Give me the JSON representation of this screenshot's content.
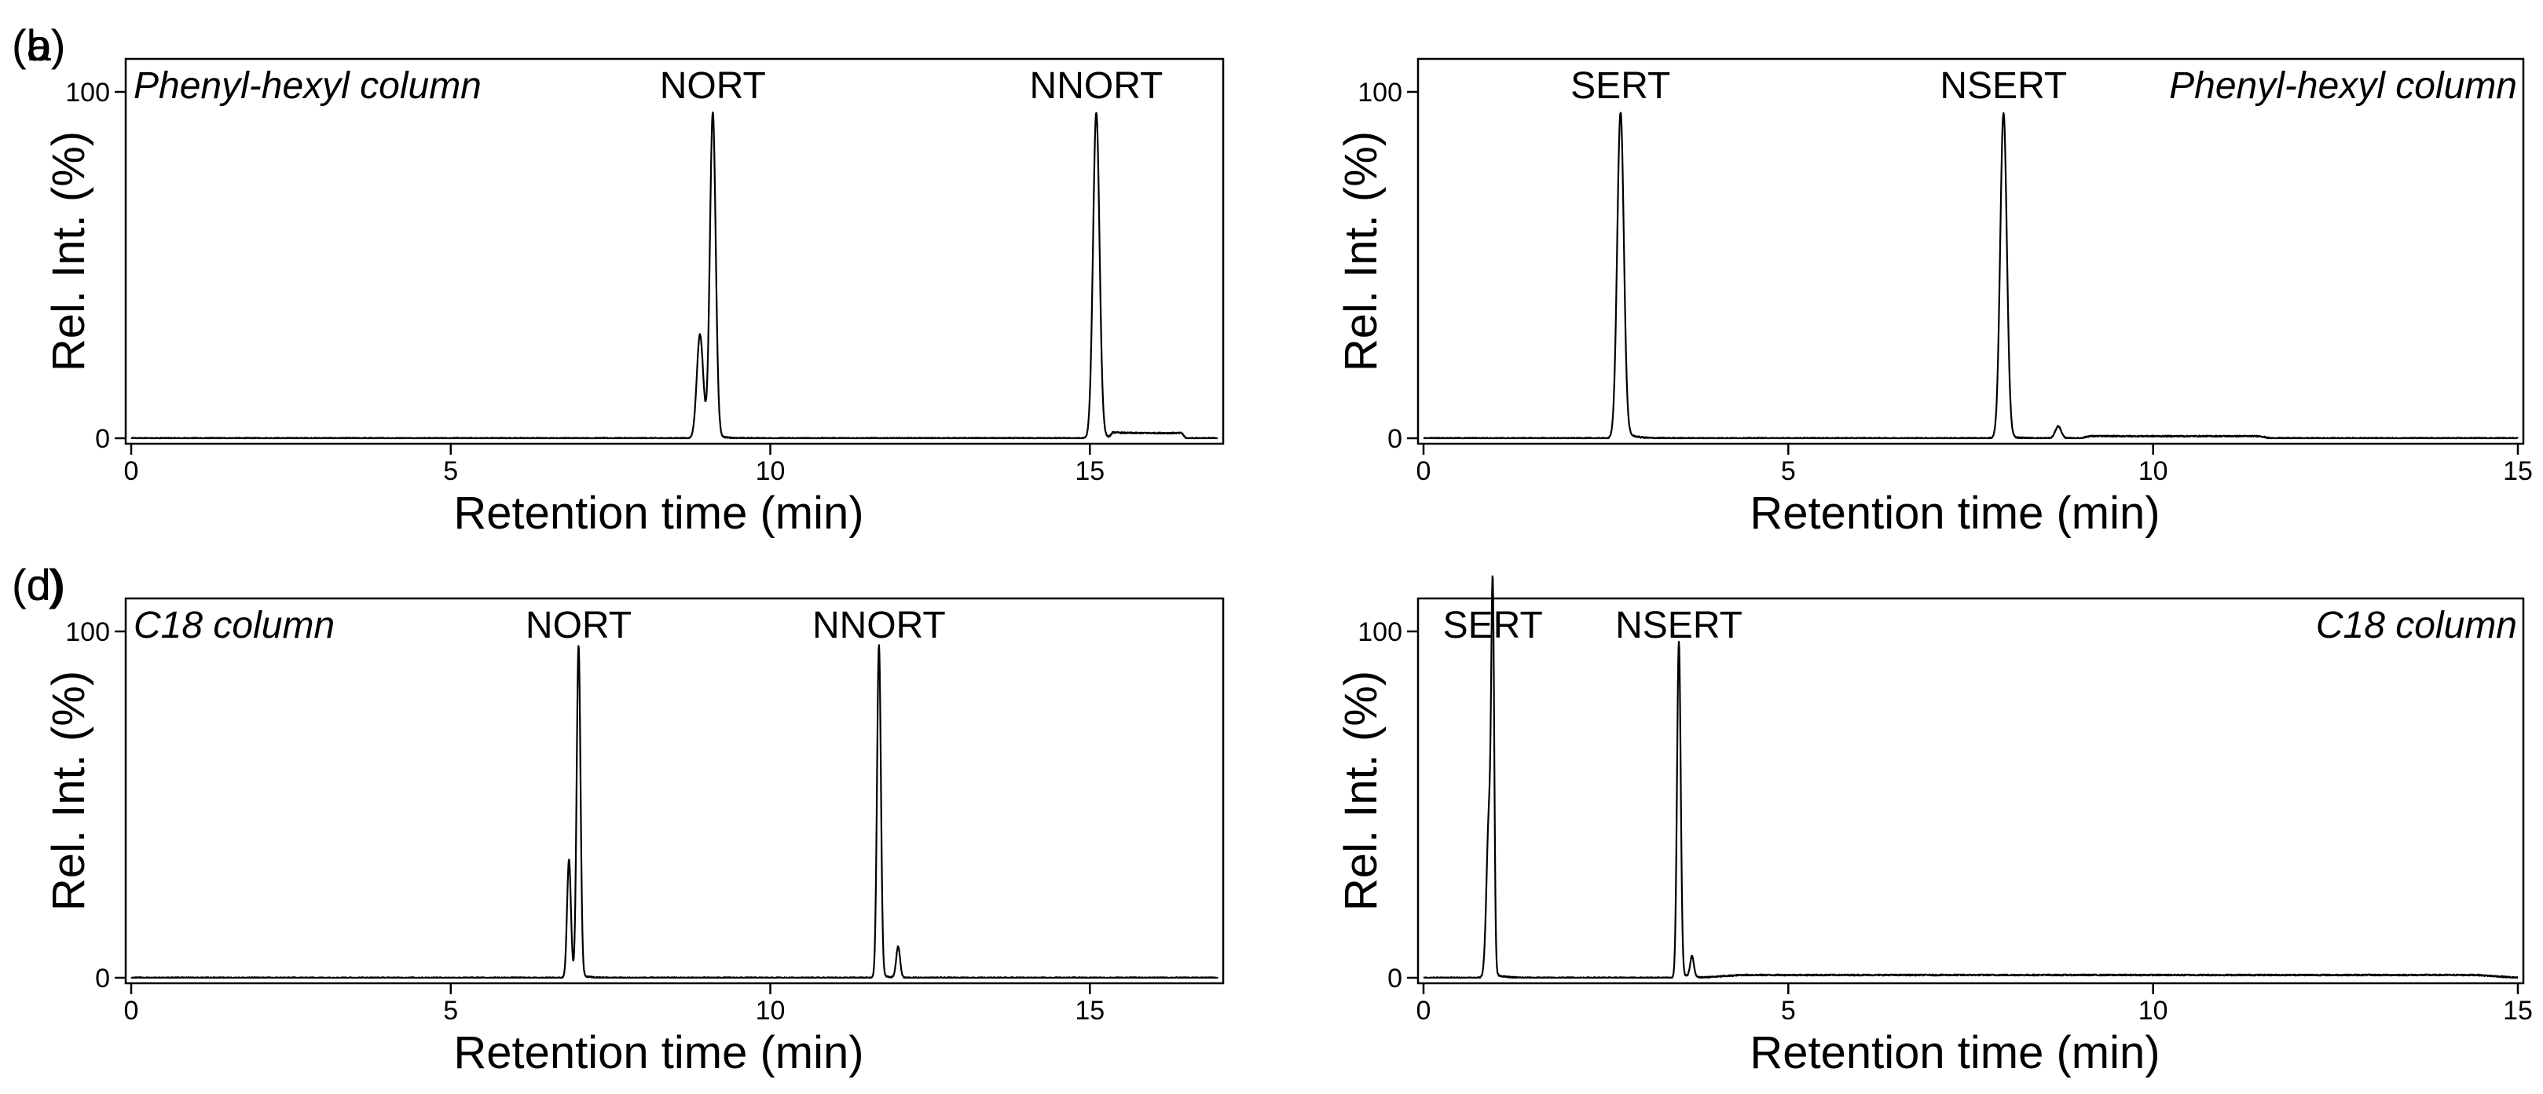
{
  "chart_data": [
    {
      "type": "line",
      "panel_label": "(a)",
      "column_label": "Phenyl-hexyl column",
      "column_label_position": "top-left",
      "xlabel": "Retention time (min)",
      "ylabel": "Rel. Int. (%)",
      "xlim": [
        0,
        17
      ],
      "ylim": [
        0,
        100
      ],
      "xticks": [
        0,
        5,
        10,
        15
      ],
      "yticks": [
        0,
        100
      ],
      "grid": false,
      "peak_labels": [
        {
          "text": "NORT",
          "x": 9.1
        },
        {
          "text": "NNORT",
          "x": 15.1
        }
      ],
      "peaks": [
        {
          "rt": 8.9,
          "height": 30,
          "width": 0.05,
          "tail": 0
        },
        {
          "rt": 9.1,
          "height": 94,
          "width": 0.045,
          "tail": 1.5
        },
        {
          "rt": 15.1,
          "height": 94,
          "width": 0.05,
          "tail": 2
        }
      ],
      "baseline_humps": [
        {
          "from": 15.3,
          "to": 16.5,
          "level": 1.5
        }
      ]
    },
    {
      "type": "line",
      "panel_label": "(b)",
      "column_label": "Phenyl-hexyl column",
      "column_label_position": "top-right",
      "xlabel": "Retention time (min)",
      "ylabel": "Rel. Int. (%)",
      "xlim": [
        0,
        15
      ],
      "ylim": [
        0,
        100
      ],
      "xticks": [
        0,
        5,
        10,
        15
      ],
      "yticks": [
        0,
        100
      ],
      "grid": false,
      "peak_labels": [
        {
          "text": "SERT",
          "x": 2.7
        },
        {
          "text": "NSERT",
          "x": 7.95
        }
      ],
      "peaks": [
        {
          "rt": 2.7,
          "height": 94,
          "width": 0.045,
          "tail": 3
        },
        {
          "rt": 7.95,
          "height": 94,
          "width": 0.045,
          "tail": 1
        },
        {
          "rt": 8.7,
          "height": 3.5,
          "width": 0.04,
          "tail": 0
        }
      ],
      "baseline_humps": [
        {
          "from": 9.0,
          "to": 11.6,
          "level": 0.6
        }
      ]
    },
    {
      "type": "line",
      "panel_label": "(c)",
      "column_label": "C18 column",
      "column_label_position": "top-left",
      "xlabel": "Retention time (min)",
      "ylabel": "Rel. Int. (%)",
      "xlim": [
        0,
        17
      ],
      "ylim": [
        0,
        100
      ],
      "xticks": [
        0,
        5,
        10,
        15
      ],
      "yticks": [
        0,
        100
      ],
      "grid": false,
      "peak_labels": [
        {
          "text": "NORT",
          "x": 7.0
        },
        {
          "text": "NNORT",
          "x": 11.7
        }
      ],
      "peaks": [
        {
          "rt": 6.85,
          "height": 34,
          "width": 0.03,
          "tail": 0
        },
        {
          "rt": 7.0,
          "height": 96,
          "width": 0.03,
          "tail": 1
        },
        {
          "rt": 11.7,
          "height": 96,
          "width": 0.03,
          "tail": 1
        },
        {
          "rt": 12.0,
          "height": 9,
          "width": 0.03,
          "tail": 0
        }
      ],
      "baseline_humps": []
    },
    {
      "type": "line",
      "panel_label": "(d)",
      "column_label": "C18 column",
      "column_label_position": "top-right",
      "xlabel": "Retention time (min)",
      "ylabel": "Rel. Int. (%)",
      "xlim": [
        0,
        15
      ],
      "ylim": [
        0,
        100
      ],
      "xticks": [
        0,
        5,
        10,
        15
      ],
      "yticks": [
        0,
        100
      ],
      "grid": false,
      "peak_labels": [
        {
          "text": "SERT",
          "x": 0.95
        },
        {
          "text": "NSERT",
          "x": 3.5
        }
      ],
      "peaks": [
        {
          "rt": 0.9,
          "height": 48,
          "width": 0.035,
          "tail": 2
        },
        {
          "rt": 0.95,
          "height": 97,
          "width": 0.02,
          "tail": 0
        },
        {
          "rt": 3.5,
          "height": 97,
          "width": 0.025,
          "tail": 1.5
        },
        {
          "rt": 3.68,
          "height": 6,
          "width": 0.025,
          "tail": 0
        }
      ],
      "baseline_humps": [
        {
          "from": 3.8,
          "to": 15,
          "level": 0.8
        }
      ]
    }
  ]
}
